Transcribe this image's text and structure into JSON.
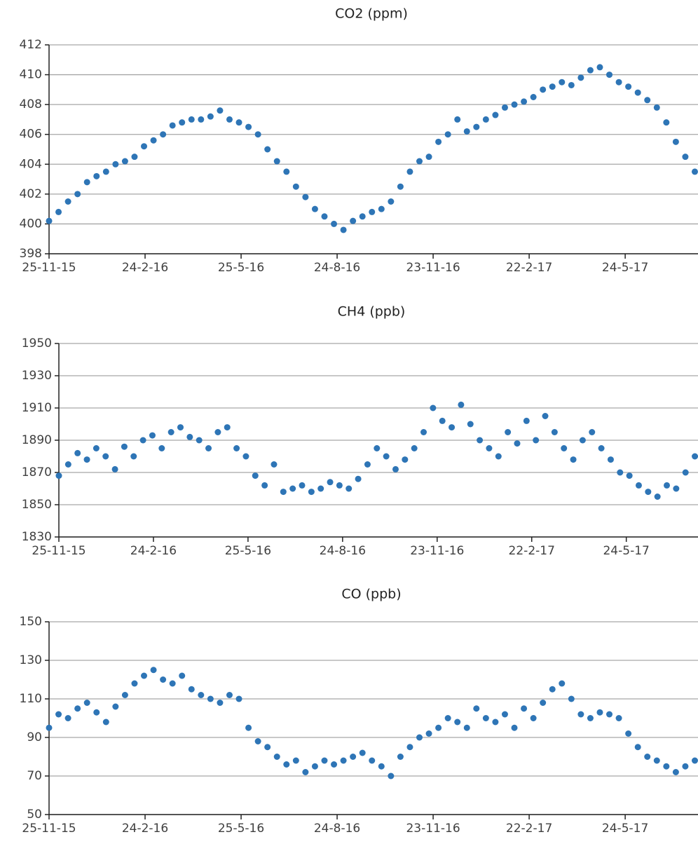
{
  "chart_data": [
    {
      "type": "scatter",
      "title": "CO2 (ppm)",
      "color": "#2e75b6",
      "grid": true,
      "x": [
        "25-11-15",
        "4-12-15",
        "13-12-15",
        "22-12-15",
        "31-12-15",
        "9-1-16",
        "18-1-16",
        "27-1-16",
        "5-2-16",
        "14-2-16",
        "23-2-16",
        "3-3-16",
        "12-3-16",
        "21-3-16",
        "30-3-16",
        "8-4-16",
        "17-4-16",
        "26-4-16",
        "5-5-16",
        "14-5-16",
        "23-5-16",
        "1-6-16",
        "10-6-16",
        "19-6-16",
        "28-6-16",
        "7-7-16",
        "16-7-16",
        "25-7-16",
        "3-8-16",
        "12-8-16",
        "21-8-16",
        "30-8-16",
        "8-9-16",
        "17-9-16",
        "26-9-16",
        "5-10-16",
        "14-10-16",
        "23-10-16",
        "1-11-16",
        "10-11-16",
        "19-11-16",
        "28-11-16",
        "7-12-16",
        "16-12-16",
        "25-12-16",
        "3-1-17",
        "12-1-17",
        "21-1-17",
        "30-1-17",
        "8-2-17",
        "17-2-17",
        "26-2-17",
        "7-3-17",
        "16-3-17",
        "25-3-17",
        "3-4-17",
        "12-4-17",
        "21-4-17",
        "30-4-17",
        "9-5-17",
        "18-5-17",
        "27-5-17",
        "5-6-17",
        "14-6-17",
        "23-6-17",
        "2-7-17",
        "11-7-17",
        "20-7-17",
        "29-7-17"
      ],
      "values": [
        400.2,
        400.8,
        401.5,
        402,
        402.8,
        403.2,
        403.5,
        404,
        404.2,
        404.5,
        405.2,
        405.6,
        406,
        406.6,
        406.8,
        407,
        407,
        407.2,
        407.6,
        407,
        406.8,
        406.5,
        406,
        405,
        404.2,
        403.5,
        402.5,
        401.8,
        401,
        400.5,
        400,
        399.6,
        400.2,
        400.5,
        400.8,
        401,
        401.5,
        402.5,
        403.5,
        404.2,
        404.5,
        405.5,
        406,
        407,
        406.2,
        406.5,
        407,
        407.3,
        407.8,
        408,
        408.2,
        408.5,
        409,
        409.2,
        409.5,
        409.3,
        409.8,
        410.3,
        410.5,
        410,
        409.5,
        409.2,
        408.8,
        408.3,
        407.8,
        406.8,
        405.5,
        404.5,
        403.5
      ],
      "xlim": [
        "25-11-15",
        "1-8-17"
      ],
      "xticks": [
        "25-11-15",
        "24-2-16",
        "25-5-16",
        "24-8-16",
        "23-11-16",
        "22-2-17",
        "24-5-17"
      ],
      "ylim": [
        398,
        412
      ],
      "yticks": [
        398,
        400,
        402,
        404,
        406,
        408,
        410,
        412
      ]
    },
    {
      "type": "scatter",
      "title": "CH4 (ppb)",
      "color": "#2e75b6",
      "grid": true,
      "x": [
        "25-11-15",
        "4-12-15",
        "13-12-15",
        "22-12-15",
        "31-12-15",
        "9-1-16",
        "18-1-16",
        "27-1-16",
        "5-2-16",
        "14-2-16",
        "23-2-16",
        "3-3-16",
        "12-3-16",
        "21-3-16",
        "30-3-16",
        "8-4-16",
        "17-4-16",
        "26-4-16",
        "5-5-16",
        "14-5-16",
        "23-5-16",
        "1-6-16",
        "10-6-16",
        "19-6-16",
        "28-6-16",
        "7-7-16",
        "16-7-16",
        "25-7-16",
        "3-8-16",
        "12-8-16",
        "21-8-16",
        "30-8-16",
        "8-9-16",
        "17-9-16",
        "26-9-16",
        "5-10-16",
        "14-10-16",
        "23-10-16",
        "1-11-16",
        "10-11-16",
        "19-11-16",
        "28-11-16",
        "7-12-16",
        "16-12-16",
        "25-12-16",
        "3-1-17",
        "12-1-17",
        "21-1-17",
        "30-1-17",
        "8-2-17",
        "17-2-17",
        "26-2-17",
        "7-3-17",
        "16-3-17",
        "25-3-17",
        "3-4-17",
        "12-4-17",
        "21-4-17",
        "30-4-17",
        "9-5-17",
        "18-5-17",
        "27-5-17",
        "5-6-17",
        "14-6-17",
        "23-6-17",
        "2-7-17",
        "11-7-17",
        "20-7-17",
        "29-7-17"
      ],
      "values": [
        1868,
        1875,
        1882,
        1878,
        1885,
        1880,
        1872,
        1886,
        1880,
        1890,
        1893,
        1885,
        1895,
        1898,
        1892,
        1890,
        1885,
        1895,
        1898,
        1885,
        1880,
        1868,
        1862,
        1875,
        1858,
        1860,
        1862,
        1858,
        1860,
        1864,
        1862,
        1860,
        1866,
        1875,
        1885,
        1880,
        1872,
        1878,
        1885,
        1895,
        1910,
        1902,
        1898,
        1912,
        1900,
        1890,
        1885,
        1880,
        1895,
        1888,
        1902,
        1890,
        1905,
        1895,
        1885,
        1878,
        1890,
        1895,
        1885,
        1878,
        1870,
        1868,
        1862,
        1858,
        1855,
        1862,
        1860,
        1870,
        1880
      ],
      "xlim": [
        "25-11-15",
        "1-8-17"
      ],
      "xticks": [
        "25-11-15",
        "24-2-16",
        "25-5-16",
        "24-8-16",
        "23-11-16",
        "22-2-17",
        "24-5-17"
      ],
      "ylim": [
        1830,
        1950
      ],
      "yticks": [
        1830,
        1850,
        1870,
        1890,
        1910,
        1930,
        1950
      ]
    },
    {
      "type": "scatter",
      "title": "CO (ppb)",
      "color": "#2e75b6",
      "grid": true,
      "x": [
        "25-11-15",
        "4-12-15",
        "13-12-15",
        "22-12-15",
        "31-12-15",
        "9-1-16",
        "18-1-16",
        "27-1-16",
        "5-2-16",
        "14-2-16",
        "23-2-16",
        "3-3-16",
        "12-3-16",
        "21-3-16",
        "30-3-16",
        "8-4-16",
        "17-4-16",
        "26-4-16",
        "5-5-16",
        "14-5-16",
        "23-5-16",
        "1-6-16",
        "10-6-16",
        "19-6-16",
        "28-6-16",
        "7-7-16",
        "16-7-16",
        "25-7-16",
        "3-8-16",
        "12-8-16",
        "21-8-16",
        "30-8-16",
        "8-9-16",
        "17-9-16",
        "26-9-16",
        "5-10-16",
        "14-10-16",
        "23-10-16",
        "1-11-16",
        "10-11-16",
        "19-11-16",
        "28-11-16",
        "7-12-16",
        "16-12-16",
        "25-12-16",
        "3-1-17",
        "12-1-17",
        "21-1-17",
        "30-1-17",
        "8-2-17",
        "17-2-17",
        "26-2-17",
        "7-3-17",
        "16-3-17",
        "25-3-17",
        "3-4-17",
        "12-4-17",
        "21-4-17",
        "30-4-17",
        "9-5-17",
        "18-5-17",
        "27-5-17",
        "5-6-17",
        "14-6-17",
        "23-6-17",
        "2-7-17",
        "11-7-17",
        "20-7-17",
        "29-7-17"
      ],
      "values": [
        95,
        102,
        100,
        105,
        108,
        103,
        98,
        106,
        112,
        118,
        122,
        125,
        120,
        118,
        122,
        115,
        112,
        110,
        108,
        112,
        110,
        95,
        88,
        85,
        80,
        76,
        78,
        72,
        75,
        78,
        76,
        78,
        80,
        82,
        78,
        75,
        70,
        80,
        85,
        90,
        92,
        95,
        100,
        98,
        95,
        105,
        100,
        98,
        102,
        95,
        105,
        100,
        108,
        115,
        118,
        110,
        102,
        100,
        103,
        102,
        100,
        92,
        85,
        80,
        78,
        75,
        72,
        75,
        78
      ],
      "xlim": [
        "25-11-15",
        "1-8-17"
      ],
      "xticks": [
        "25-11-15",
        "24-2-16",
        "25-5-16",
        "24-8-16",
        "23-11-16",
        "22-2-17",
        "24-5-17"
      ],
      "ylim": [
        50,
        150
      ],
      "yticks": [
        50,
        70,
        90,
        110,
        130,
        150
      ]
    }
  ]
}
